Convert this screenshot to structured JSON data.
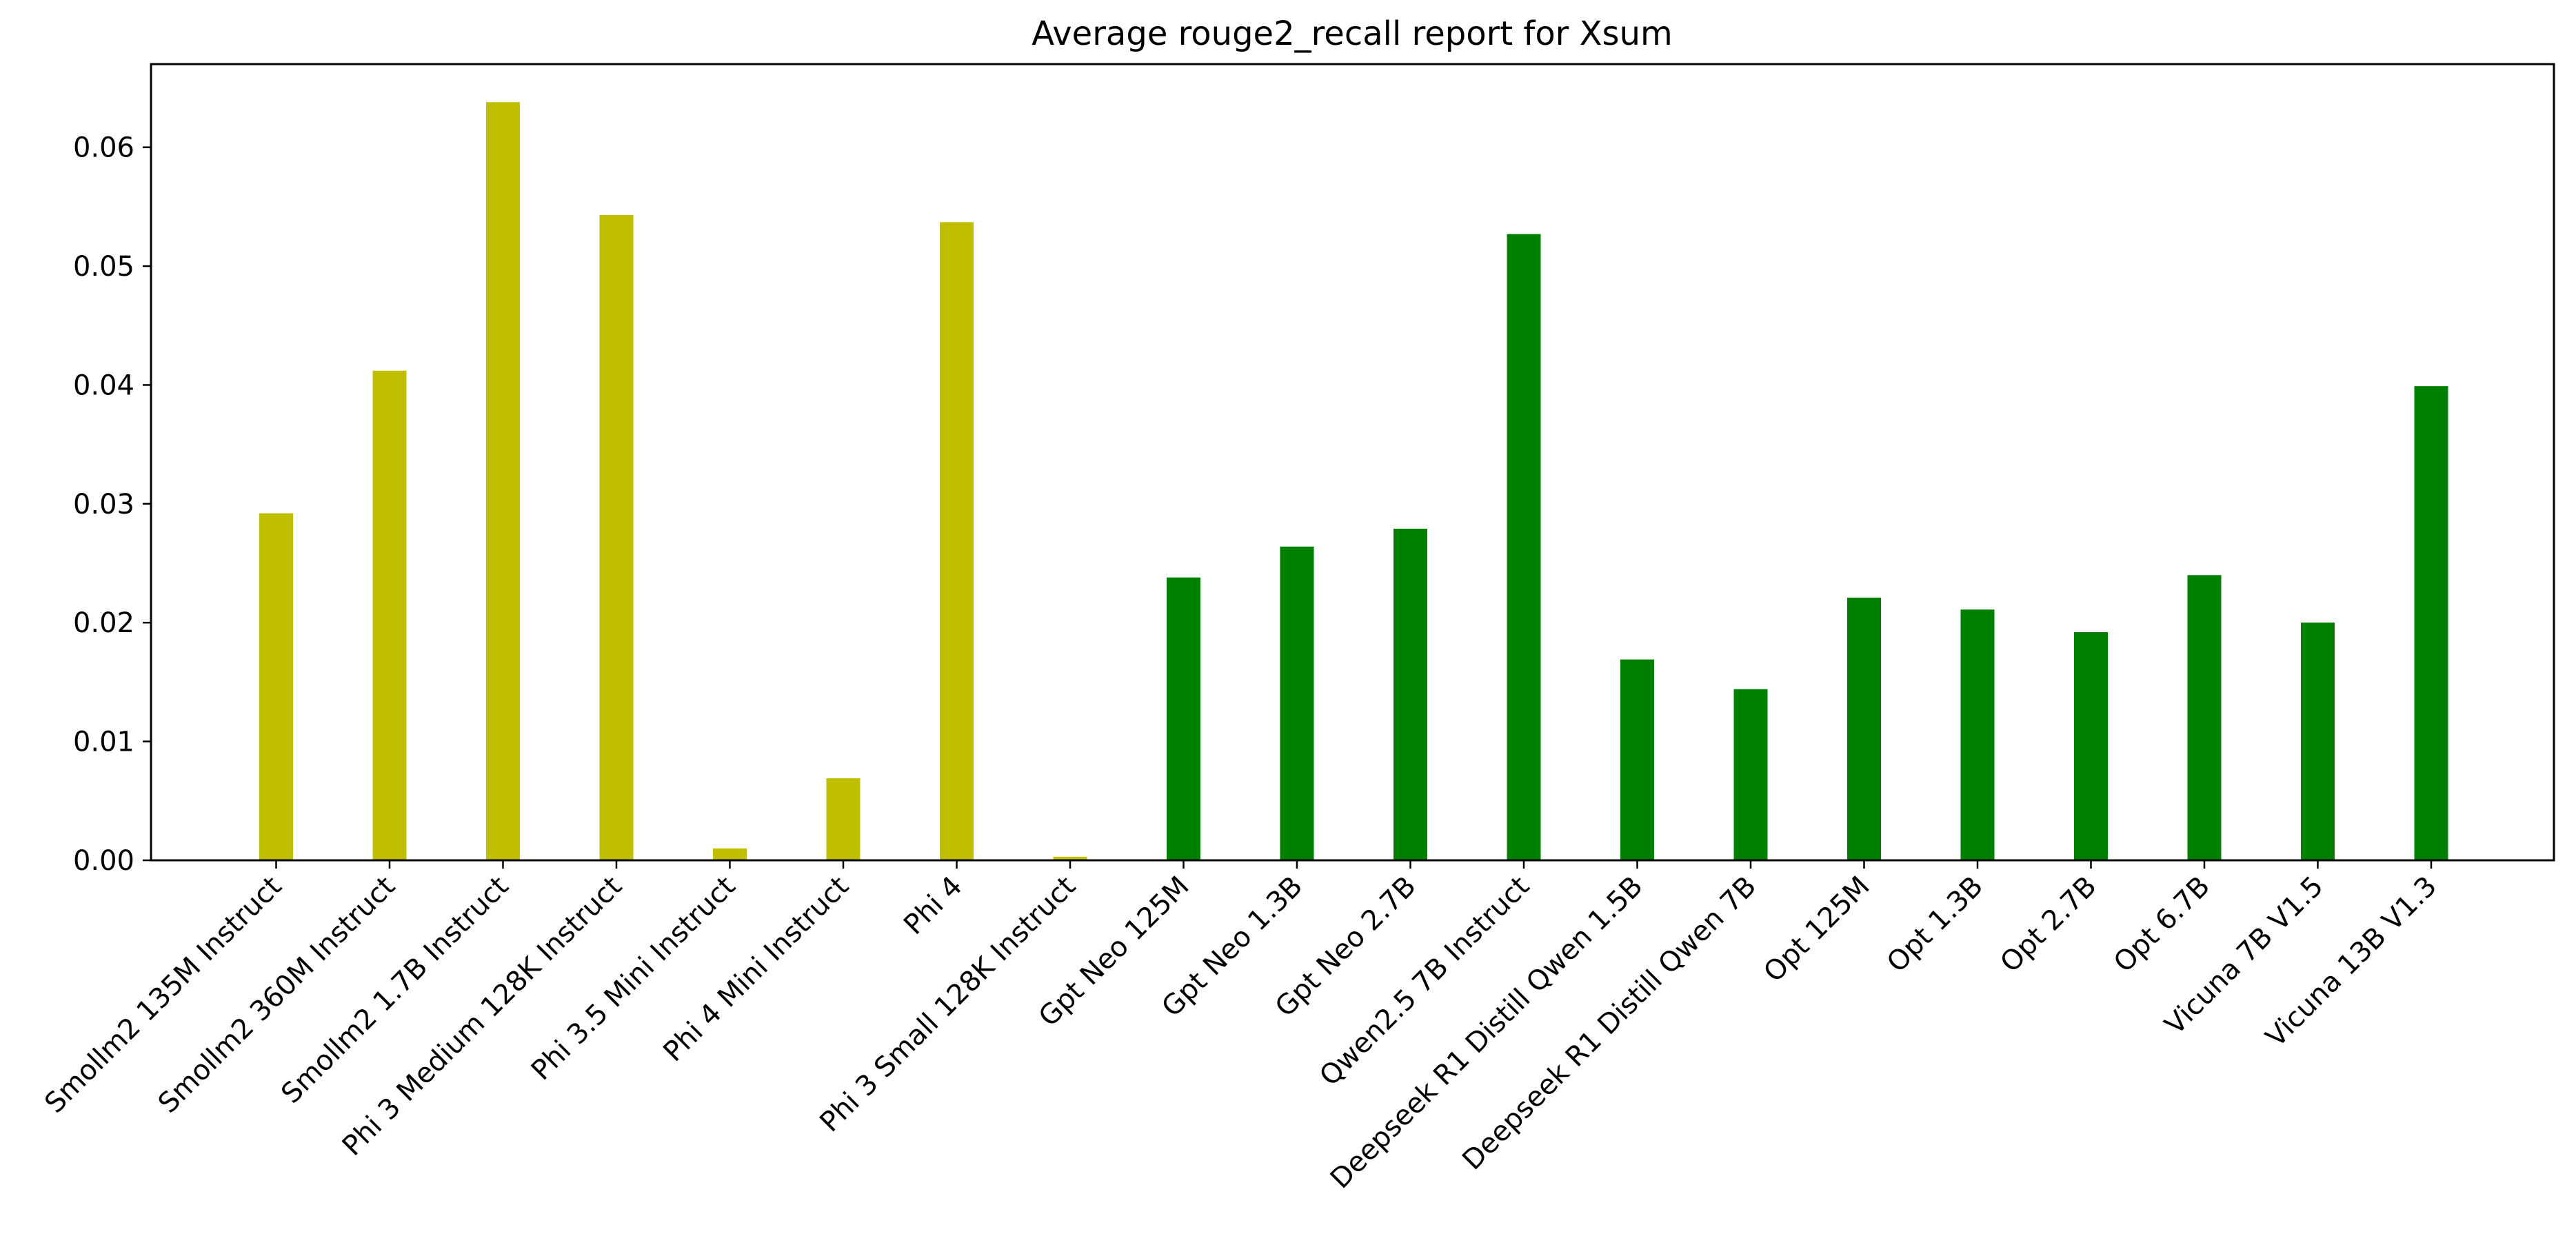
{
  "chart_data": {
    "type": "bar",
    "title": "Average rouge2_recall report for Xsum",
    "xlabel": "",
    "ylabel": "",
    "ylim": [
      0,
      0.067
    ],
    "yticks": [
      0.0,
      0.01,
      0.02,
      0.03,
      0.04,
      0.05,
      0.06
    ],
    "ytick_labels": [
      "0.00",
      "0.01",
      "0.02",
      "0.03",
      "0.04",
      "0.05",
      "0.06"
    ],
    "grid": false,
    "legend": "none",
    "categories": [
      "Smollm2 135M Instruct",
      "Smollm2 360M Instruct",
      "Smollm2 1.7B Instruct",
      "Phi 3 Medium 128K Instruct",
      "Phi 3.5 Mini Instruct",
      "Phi 4 Mini Instruct",
      "Phi 4",
      "Phi 3 Small 128K Instruct",
      "Gpt Neo 125M",
      "Gpt Neo 1.3B",
      "Gpt Neo 2.7B",
      "Qwen2.5 7B Instruct",
      "Deepseek R1 Distill Qwen 1.5B",
      "Deepseek R1 Distill Qwen 7B",
      "Opt 125M",
      "Opt 1.3B",
      "Opt 2.7B",
      "Opt 6.7B",
      "Vicuna 7B V1.5",
      "Vicuna 13B V1.3"
    ],
    "values": [
      0.0292,
      0.0412,
      0.0638,
      0.0543,
      0.001,
      0.0069,
      0.0537,
      0.0003,
      0.0238,
      0.0264,
      0.0279,
      0.0527,
      0.0169,
      0.0144,
      0.0221,
      0.0211,
      0.0192,
      0.024,
      0.02,
      0.0399
    ],
    "bar_colors": [
      "#bfbf00",
      "#bfbf00",
      "#bfbf00",
      "#bfbf00",
      "#bfbf00",
      "#bfbf00",
      "#bfbf00",
      "#bfbf00",
      "#008000",
      "#008000",
      "#008000",
      "#008000",
      "#008000",
      "#008000",
      "#008000",
      "#008000",
      "#008000",
      "#008000",
      "#008000",
      "#008000"
    ]
  }
}
